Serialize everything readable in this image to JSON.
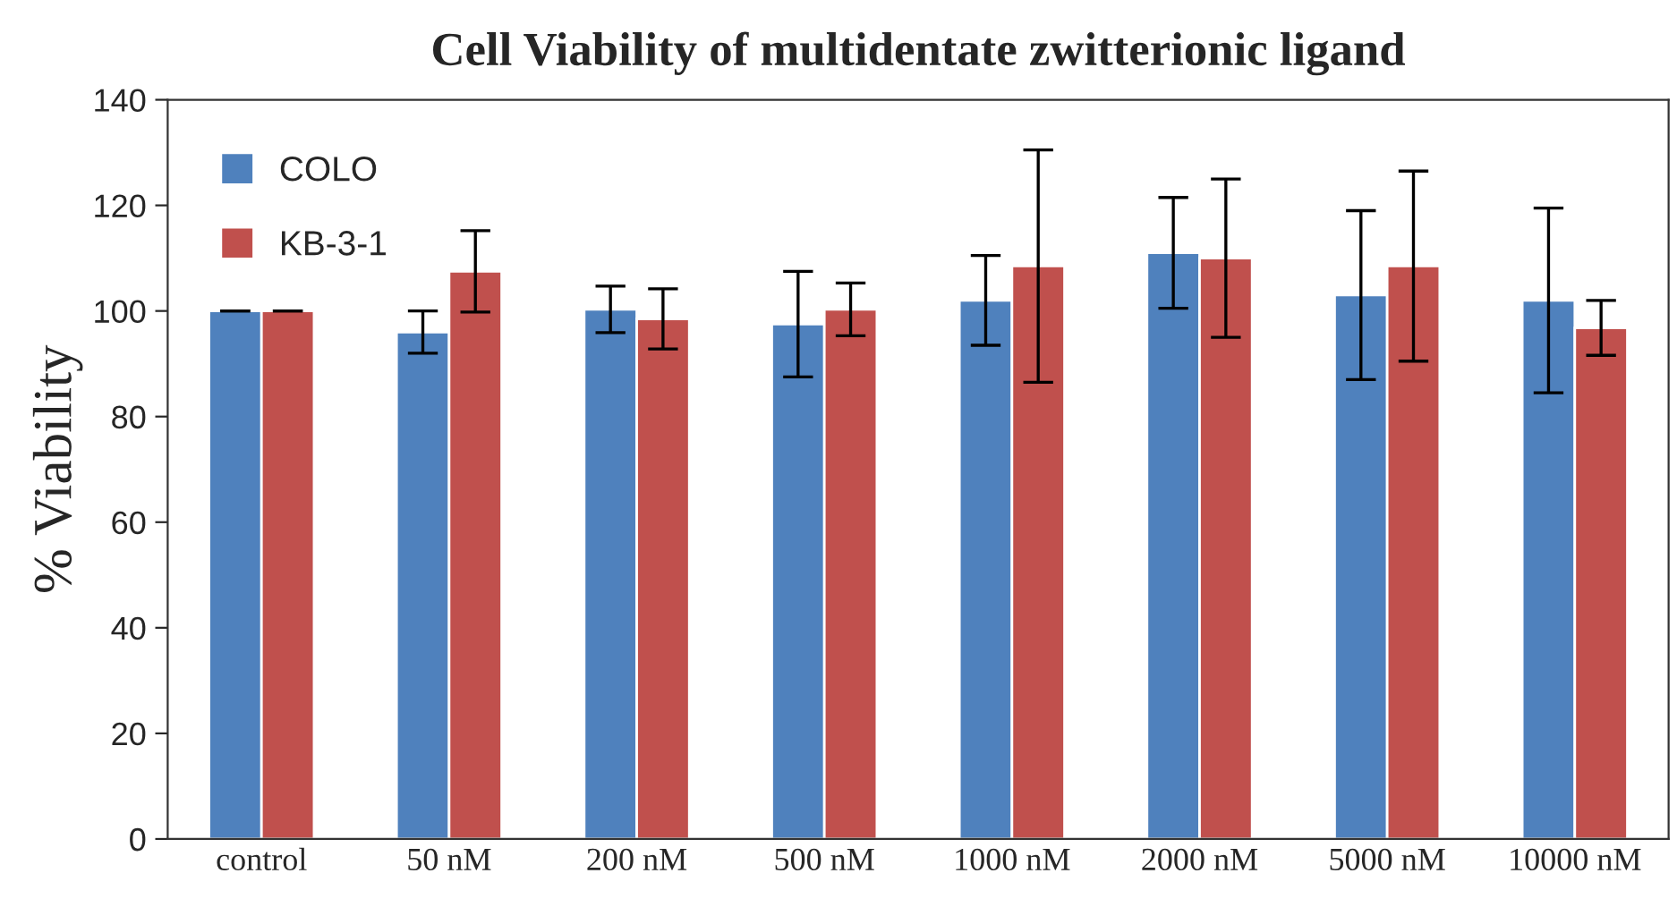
{
  "chart_data": {
    "type": "bar",
    "title": "Cell Viability of multidentate zwitterionic ligand",
    "ylabel": "% Viability",
    "categories": [
      "control",
      "50 nM",
      "200 nM",
      "500 nM",
      "1000 nM",
      "2000 nM",
      "5000 nM",
      "10000 nM"
    ],
    "series": [
      {
        "name": "COLO",
        "color": "#4f81bd",
        "values": [
          100,
          96,
          100.3,
          97.5,
          102,
          111,
          103,
          102
        ],
        "errors": [
          0,
          4,
          4.4,
          10,
          8.5,
          10.5,
          16,
          17.5
        ]
      },
      {
        "name": "KB-3-1",
        "color": "#c0504d",
        "values": [
          100,
          107.5,
          98.5,
          100.3,
          108.5,
          110,
          108.5,
          96.8
        ],
        "errors": [
          0,
          7.7,
          5.7,
          5,
          22,
          15,
          18,
          5.2
        ]
      }
    ],
    "ylim": [
      0,
      140
    ],
    "yticks": [
      0,
      20,
      40,
      60,
      80,
      100,
      120,
      140
    ],
    "grid": false,
    "legend": "top left"
  }
}
